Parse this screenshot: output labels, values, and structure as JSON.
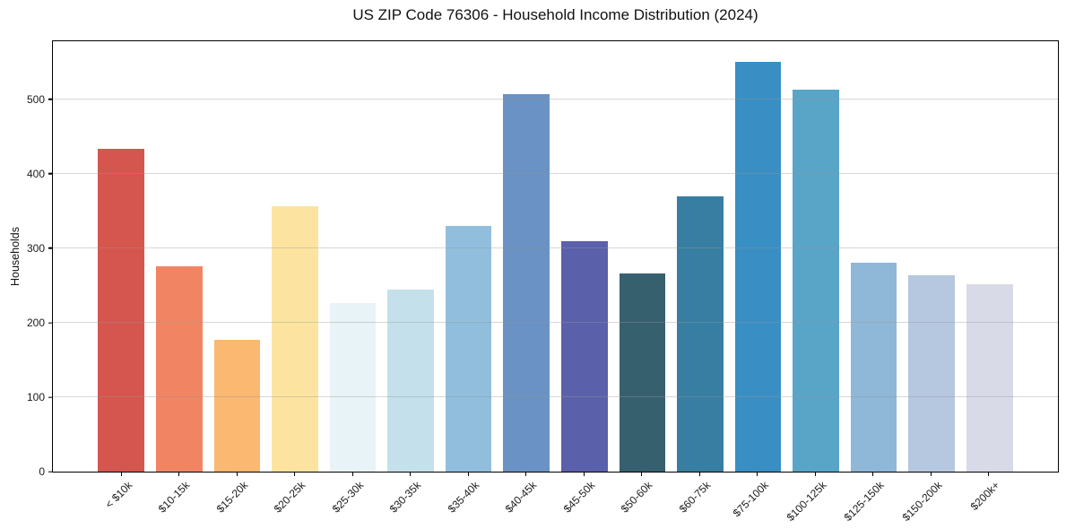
{
  "chart_data": {
    "type": "bar",
    "title": "US ZIP Code 76306 - Household Income Distribution (2024)",
    "xlabel": "",
    "ylabel": "Households",
    "ylim": [
      0,
      578
    ],
    "grid": true,
    "legend": false,
    "yticks": [
      0,
      100,
      200,
      300,
      400,
      500
    ],
    "categories": [
      "< $10k",
      "$10-15k",
      "$15-20k",
      "$20-25k",
      "$25-30k",
      "$30-35k",
      "$35-40k",
      "$40-45k",
      "$45-50k",
      "$50-60k",
      "$60-75k",
      "$75-100k",
      "$100-125k",
      "$125-150k",
      "$150-200k",
      "$200k+"
    ],
    "values": [
      433,
      276,
      177,
      356,
      227,
      245,
      330,
      507,
      310,
      266,
      370,
      550,
      513,
      280,
      264,
      252
    ],
    "bar_colors": [
      "#d5564e",
      "#f18563",
      "#fbb871",
      "#fce4a0",
      "#e7f3f6",
      "#c3e0eb",
      "#92bedd",
      "#6b92c4",
      "#5b60aa",
      "#37606f",
      "#377ea2",
      "#398fc4",
      "#58a5c8",
      "#8fb7d8",
      "#b6c7e0",
      "#d8dae8"
    ],
    "colors": {
      "axis": "#000000",
      "tick_label": "#1a1a1a",
      "title": "#111111",
      "background": "#ffffff"
    }
  }
}
